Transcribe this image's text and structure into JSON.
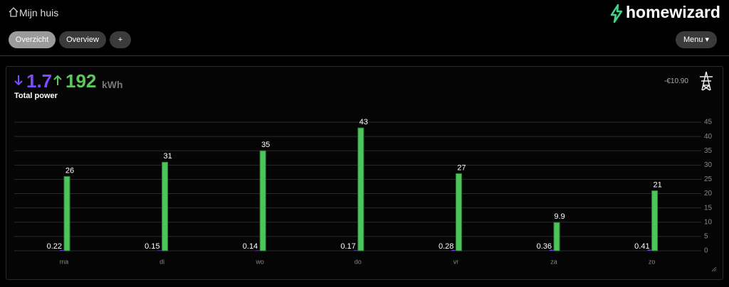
{
  "header": {
    "title": "Mijn huis",
    "logo": "homewizard"
  },
  "nav": {
    "buttons": [
      "Overzicht",
      "Overview",
      "+"
    ],
    "menu": "Menu"
  },
  "summary": {
    "import": 1.7,
    "export": 192,
    "unit": "kWh",
    "label": "Total power",
    "cost": "-€10.90"
  },
  "chart_data": {
    "type": "bar",
    "categories": [
      "ma",
      "di",
      "wo",
      "do",
      "vr",
      "za",
      "zo"
    ],
    "series": [
      {
        "color": "#7c3aed",
        "values": [
          0.22,
          0.15,
          0.14,
          0.17,
          0.28,
          0.36,
          0.41
        ]
      },
      {
        "color": "#4cc55a",
        "values": [
          26,
          31,
          35,
          43,
          27,
          9.9,
          21
        ]
      }
    ],
    "ylim": [
      0,
      45
    ],
    "yticks": [
      0,
      5,
      10,
      15,
      20,
      25,
      30,
      35,
      40,
      45
    ],
    "grid": true
  }
}
